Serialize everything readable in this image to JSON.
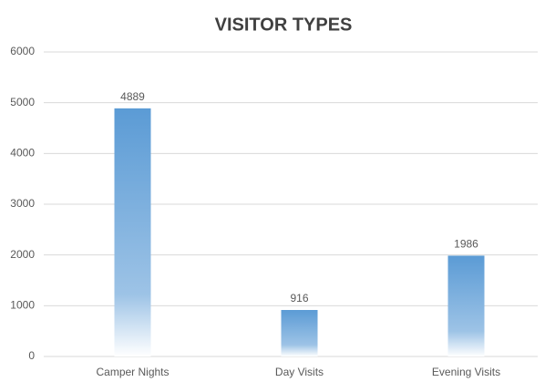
{
  "chart_data": {
    "type": "bar",
    "title": "VISITOR TYPES",
    "categories": [
      "Camper Nights",
      "Day Visits",
      "Evening Visits"
    ],
    "values": [
      4889,
      916,
      1986
    ],
    "color": "#5b9bd5",
    "ylim": [
      0,
      6000
    ],
    "yticks": [
      0,
      1000,
      2000,
      3000,
      4000,
      5000,
      6000
    ],
    "grid": true
  }
}
